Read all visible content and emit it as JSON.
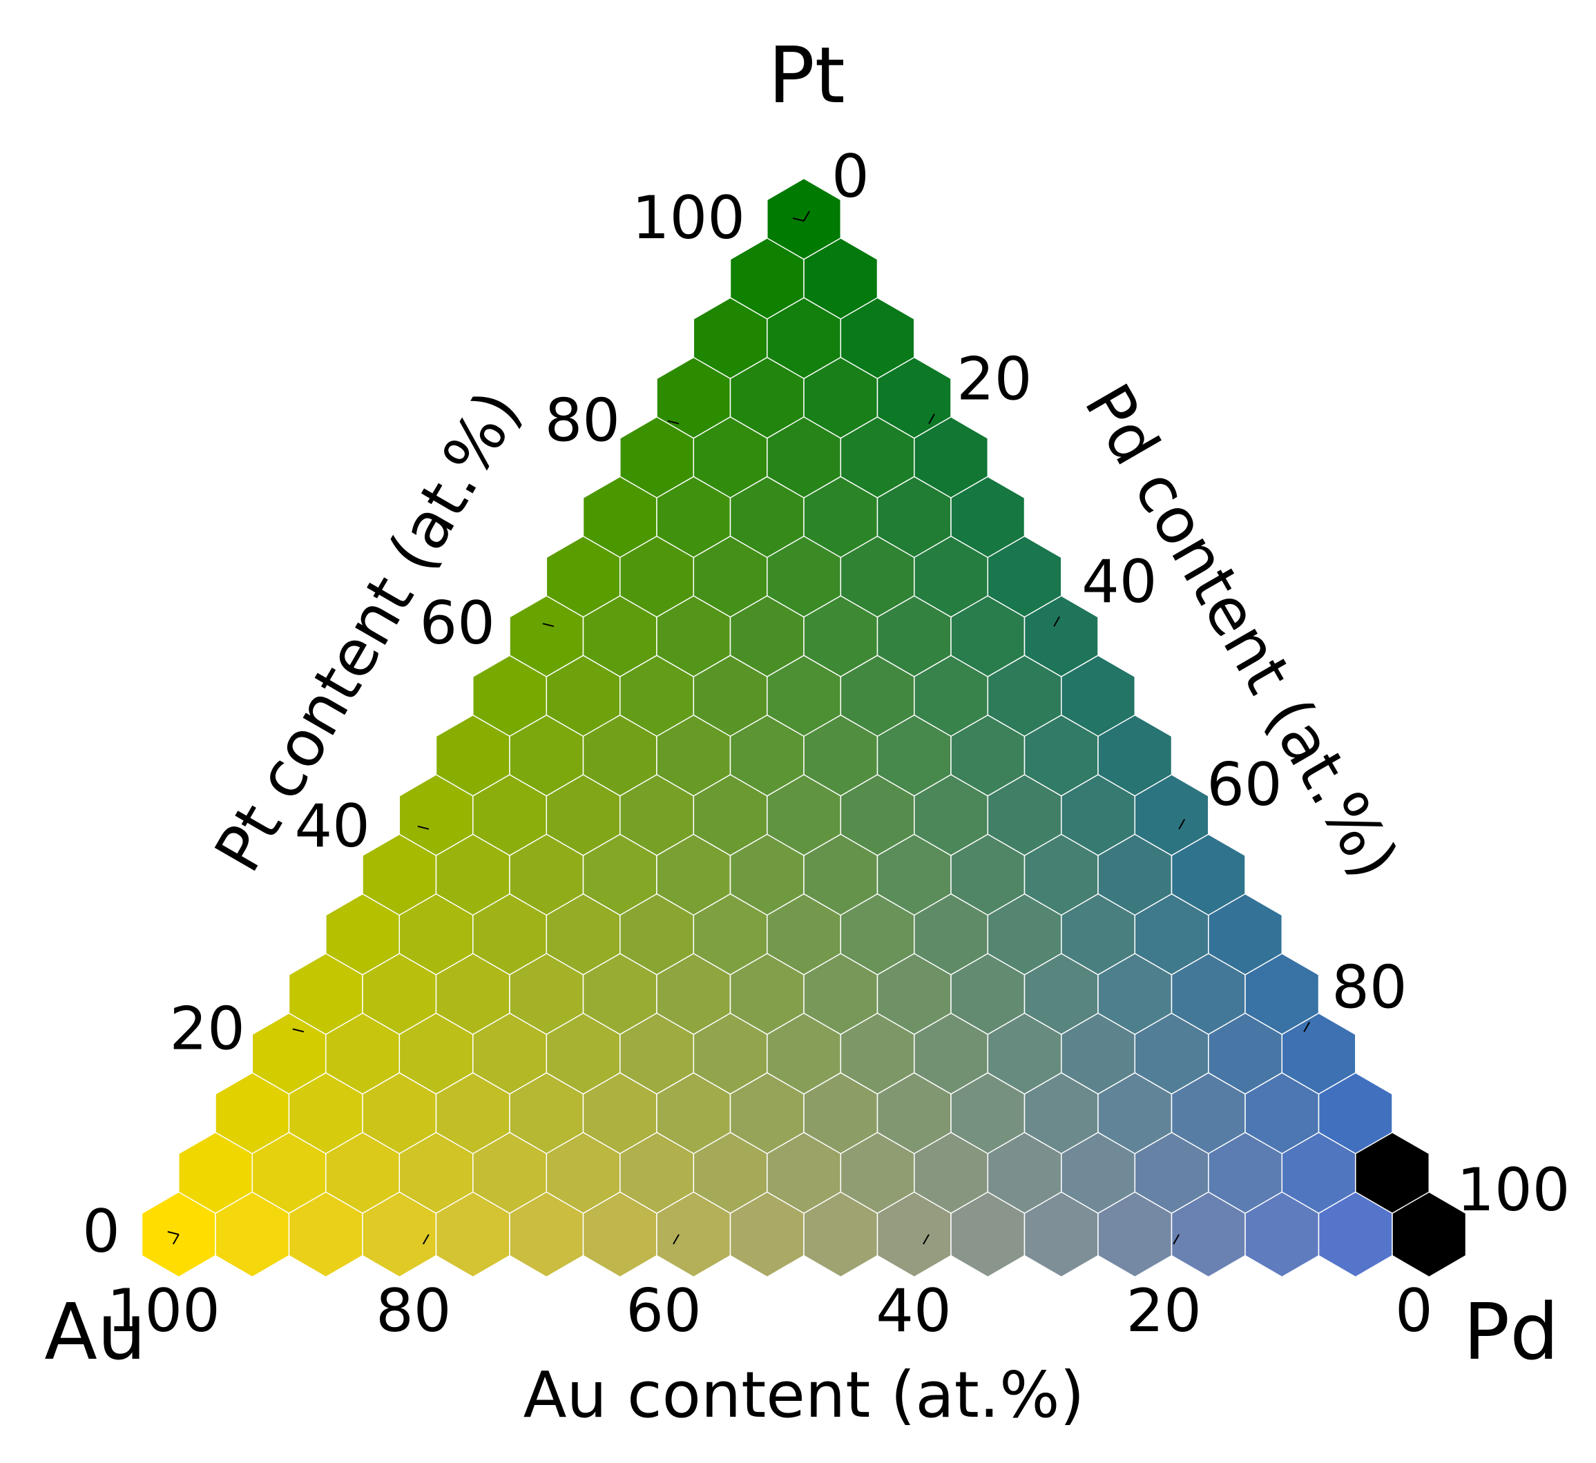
{
  "chart_data": {
    "type": "ternary-hexbin",
    "corners": {
      "top": "Pt",
      "left": "Au",
      "right": "Pd"
    },
    "axis_titles": {
      "bottom": "Au content (at.%)",
      "left": "Pt content (at.%)",
      "right": "Pd content (at.%)"
    },
    "tick_labels": {
      "bottom": [
        "100",
        "80",
        "60",
        "40",
        "20",
        "0"
      ],
      "left": [
        "0",
        "20",
        "40",
        "60",
        "80",
        "100"
      ],
      "right": [
        "0",
        "20",
        "40",
        "60",
        "80",
        "100"
      ]
    },
    "ticks_data": {
      "bottom_Au": [
        100,
        80,
        60,
        40,
        20,
        0
      ],
      "left_Pt": [
        0,
        20,
        40,
        60,
        80,
        100
      ],
      "right_Pd": [
        0,
        20,
        40,
        60,
        80,
        100
      ]
    },
    "grid_steps": 17,
    "corner_colors": {
      "Au": "#FFDD00",
      "Pt": "#007A00",
      "Pd": "#4A6FD8"
    },
    "missing_points": [
      {
        "Au": 0,
        "Pt": 0,
        "Pd": 100
      },
      {
        "Au": 0,
        "Pt": 5.88,
        "Pd": 94.12
      }
    ],
    "missing_color": "#000000",
    "hex_stroke": "#FFFFFF"
  }
}
